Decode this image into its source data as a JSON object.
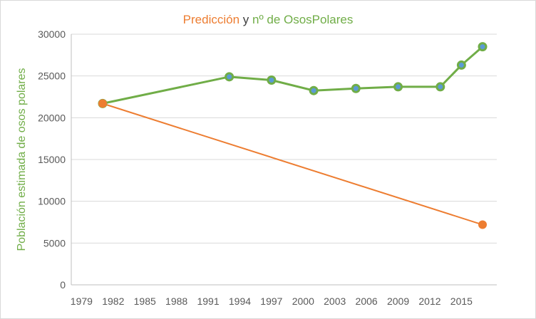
{
  "chart_data": {
    "type": "line",
    "title_parts": [
      {
        "text": "Predicción",
        "color": "#ED7D31"
      },
      {
        "text": " y ",
        "color": "#404040"
      },
      {
        "text": "nº de OsosPolares",
        "color": "#70AD47"
      }
    ],
    "ylabel": "Población estimada de osos polares",
    "xlabel": "",
    "ylim": [
      0,
      30000
    ],
    "yticks": [
      0,
      5000,
      10000,
      15000,
      20000,
      25000,
      30000
    ],
    "xticks": [
      1979,
      1982,
      1985,
      1988,
      1991,
      1994,
      1997,
      2000,
      2003,
      2006,
      2009,
      2012,
      2015
    ],
    "grid": true,
    "series": [
      {
        "name": "nº de OsosPolares",
        "color": "#70AD47",
        "marker_fill": "#5B9BD5",
        "x": [
          1981,
          1993,
          1997,
          2001,
          2005,
          2009,
          2013,
          2015,
          2017
        ],
        "y": [
          21700,
          24900,
          24500,
          23250,
          23500,
          23700,
          23700,
          26300,
          28500
        ]
      },
      {
        "name": "Predicción",
        "color": "#ED7D31",
        "marker_fill": "#ED7D31",
        "x": [
          1981,
          2017
        ],
        "y": [
          21700,
          7200
        ]
      }
    ]
  }
}
